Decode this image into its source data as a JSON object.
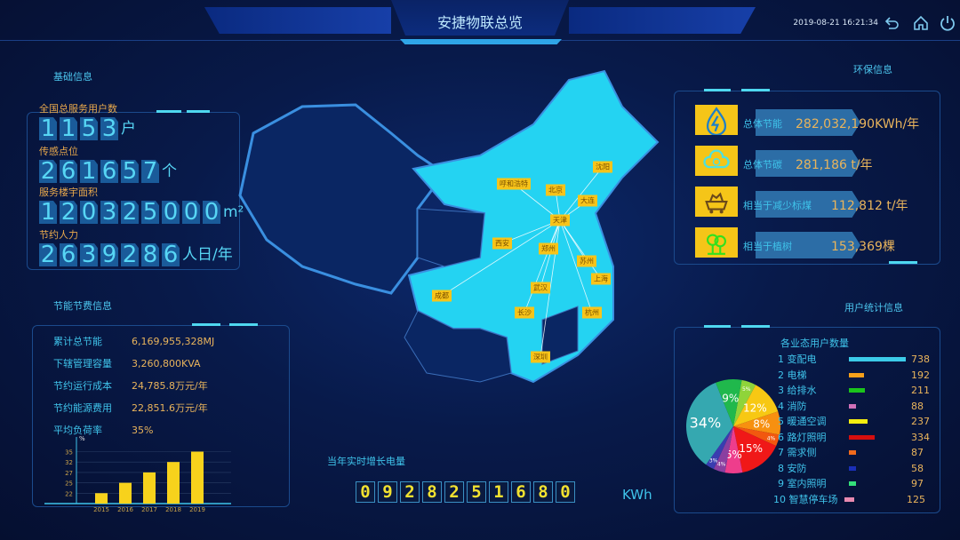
{
  "header": {
    "title": "安捷物联总览",
    "datetime": "2019-08-21 16:21:34",
    "icons": [
      "back-icon",
      "home-icon",
      "power-icon"
    ]
  },
  "basic": {
    "title": "基础信息",
    "items": [
      {
        "label": "全国总服务用户数",
        "value": "1153",
        "unit": "户"
      },
      {
        "label": "传感点位",
        "value": "261657",
        "unit": "个"
      },
      {
        "label": "服务楼宇面积",
        "value": "120325000",
        "unit": "m²"
      },
      {
        "label": "节约人力",
        "value": "2639286",
        "unit": "人日/年"
      }
    ]
  },
  "energy": {
    "title": "节能节费信息",
    "rows": [
      {
        "k": "累计总节能",
        "v": "6,169,955,328MJ"
      },
      {
        "k": "下辖管理容量",
        "v": "3,260,800KVA"
      },
      {
        "k": "节约运行成本",
        "v": "24,785.8万元/年"
      },
      {
        "k": "节约能源费用",
        "v": "22,851.6万元/年"
      },
      {
        "k": "平均负荷率",
        "v": "35%"
      }
    ]
  },
  "chart_data": {
    "type": "bar",
    "categories": [
      "2015",
      "2016",
      "2017",
      "2018",
      "2019"
    ],
    "values": [
      22,
      25,
      27,
      32,
      35
    ],
    "ylabel": "%",
    "yticks": [
      "22",
      "25",
      "27",
      "32",
      "35"
    ],
    "bar_color": "#f7d21c"
  },
  "map": {
    "cities": [
      "沈阳",
      "呼和浩特",
      "北京",
      "大连",
      "天津",
      "西安",
      "郑州",
      "苏州",
      "上海",
      "武汉",
      "成都",
      "长沙",
      "杭州",
      "深圳"
    ],
    "hub": "天津"
  },
  "meter": {
    "label": "当年实时增长电量",
    "digits": [
      "0",
      "9",
      "2",
      "8",
      "2",
      "5",
      "1",
      "6",
      "8",
      "0"
    ],
    "unit": "KWh"
  },
  "env": {
    "title": "环保信息",
    "items": [
      {
        "icon": "lightning-drop-icon",
        "k": "总体节能",
        "v": "282,032,190KWh/年"
      },
      {
        "icon": "carbon-cloud-icon",
        "k": "总体节碳",
        "v": "281,186 t/年"
      },
      {
        "icon": "coal-cart-icon",
        "k": "相当于减少标煤",
        "v": "112,812 t/年"
      },
      {
        "icon": "trees-icon",
        "k": "相当于植树",
        "v": "153,369棵"
      }
    ]
  },
  "users": {
    "title": "用户统计信息",
    "subtitle": "各业态用户数量",
    "legend": [
      {
        "label": "1 变配电",
        "value": 738,
        "color": "#3ccbe8"
      },
      {
        "label": "2 电梯",
        "value": 192,
        "color": "#f7a01a"
      },
      {
        "label": "3 给排水",
        "value": 211,
        "color": "#1bc41b"
      },
      {
        "label": "4 消防",
        "value": 88,
        "color": "#d070b8"
      },
      {
        "label": "5 暖通空调",
        "value": 237,
        "color": "#f5ee10"
      },
      {
        "label": "6 路灯照明",
        "value": 334,
        "color": "#d60e0e"
      },
      {
        "label": "7 需求侧",
        "value": 87,
        "color": "#f26a1c"
      },
      {
        "label": "8 安防",
        "value": 58,
        "color": "#1a2fb8"
      },
      {
        "label": "9 室内照明",
        "value": 97,
        "color": "#34e07a"
      },
      {
        "label": "10 智慧停车场",
        "value": 125,
        "color": "#e88ab0"
      }
    ],
    "pie": [
      {
        "pct": "5%",
        "color": "#8fd43a"
      },
      {
        "pct": "12%",
        "color": "#f7c813"
      },
      {
        "pct": "8%",
        "color": "#f79010"
      },
      {
        "pct": "4%",
        "color": "#f2580f"
      },
      {
        "pct": "15%",
        "color": "#f01818"
      },
      {
        "pct": "6%",
        "color": "#ee3d8c"
      },
      {
        "pct": "4%",
        "color": "#8a3fa0"
      },
      {
        "pct": "3%",
        "color": "#3a3db0"
      },
      {
        "pct": "34%",
        "color": "#35a8b0"
      },
      {
        "pct": "9%",
        "color": "#20b84c"
      }
    ]
  }
}
